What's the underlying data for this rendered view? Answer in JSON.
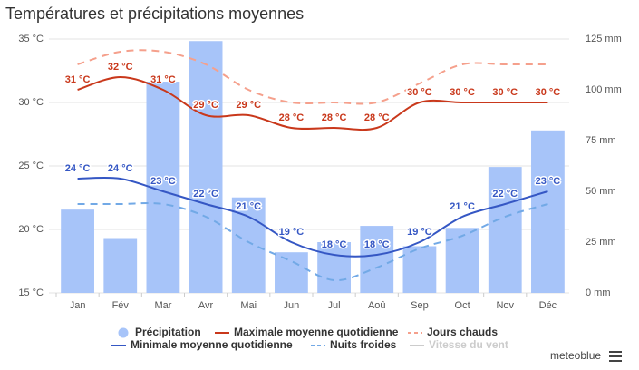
{
  "chart_data": {
    "type": "bar-line",
    "title": "Températures et précipitations moyennes",
    "categories": [
      "Jan",
      "Fév",
      "Mar",
      "Avr",
      "Mai",
      "Jun",
      "Jul",
      "Aoû",
      "Sep",
      "Oct",
      "Nov",
      "Déc"
    ],
    "ylim": [
      15,
      35
    ],
    "yticks": [
      {
        "value": 15,
        "label": "15 °C"
      },
      {
        "value": 20,
        "label": "20 °C"
      },
      {
        "value": 25,
        "label": "25 °C"
      },
      {
        "value": 30,
        "label": "30 °C"
      },
      {
        "value": 35,
        "label": "35 °C"
      }
    ],
    "y2lim": [
      0,
      125
    ],
    "y2ticks": [
      {
        "value": 0,
        "label": "0 mm"
      },
      {
        "value": 25,
        "label": "25 mm"
      },
      {
        "value": 50,
        "label": "50 mm"
      },
      {
        "value": 75,
        "label": "75 mm"
      },
      {
        "value": 100,
        "label": "100 mm"
      },
      {
        "value": 125,
        "label": "125 mm"
      }
    ],
    "grid": true,
    "series": [
      {
        "name": "Précipitation",
        "type": "bar",
        "axis": "y2",
        "color": "#a7c4f9",
        "values": [
          41,
          27,
          104,
          124,
          47,
          20,
          25,
          33,
          23,
          32,
          62,
          80
        ]
      },
      {
        "name": "Maximale moyenne quotidienne",
        "type": "line",
        "color": "#c9381b",
        "values": [
          31,
          32,
          31,
          29,
          29,
          28,
          28,
          28,
          30,
          30,
          30,
          30
        ],
        "value_labels": [
          "31 °C",
          "32 °C",
          "31 °C",
          "29 °C",
          "29 °C",
          "28 °C",
          "28 °C",
          "28 °C",
          "30 °C",
          "30 °C",
          "30 °C",
          "30 °C"
        ]
      },
      {
        "name": "Jours chauds",
        "type": "line",
        "style": "dashed",
        "color": "#f5a08c",
        "values": [
          33,
          34,
          34,
          33,
          31,
          30,
          30,
          30,
          31.5,
          33,
          33,
          33
        ]
      },
      {
        "name": "Minimale moyenne quotidienne",
        "type": "line",
        "color": "#3557c4",
        "values": [
          24,
          24,
          23,
          22,
          21,
          19,
          18,
          18,
          19,
          21,
          22,
          23
        ],
        "value_labels": [
          "24 °C",
          "24 °C",
          "23 °C",
          "22 °C",
          "21 °C",
          "19 °C",
          "18 °C",
          "18 °C",
          "19 °C",
          "21 °C",
          "22 °C",
          "23 °C"
        ]
      },
      {
        "name": "Nuits froides",
        "type": "line",
        "style": "dashed",
        "color": "#72a9e6",
        "values": [
          22,
          22,
          22,
          21,
          19,
          17.5,
          16,
          17,
          18.5,
          19.5,
          21,
          22
        ]
      },
      {
        "name": "Vitesse du vent",
        "type": "line",
        "hidden": true,
        "color": "#cccccc",
        "values": [
          null,
          null,
          null,
          null,
          null,
          null,
          null,
          null,
          null,
          null,
          null,
          null
        ]
      }
    ],
    "brand": "meteoblue"
  }
}
